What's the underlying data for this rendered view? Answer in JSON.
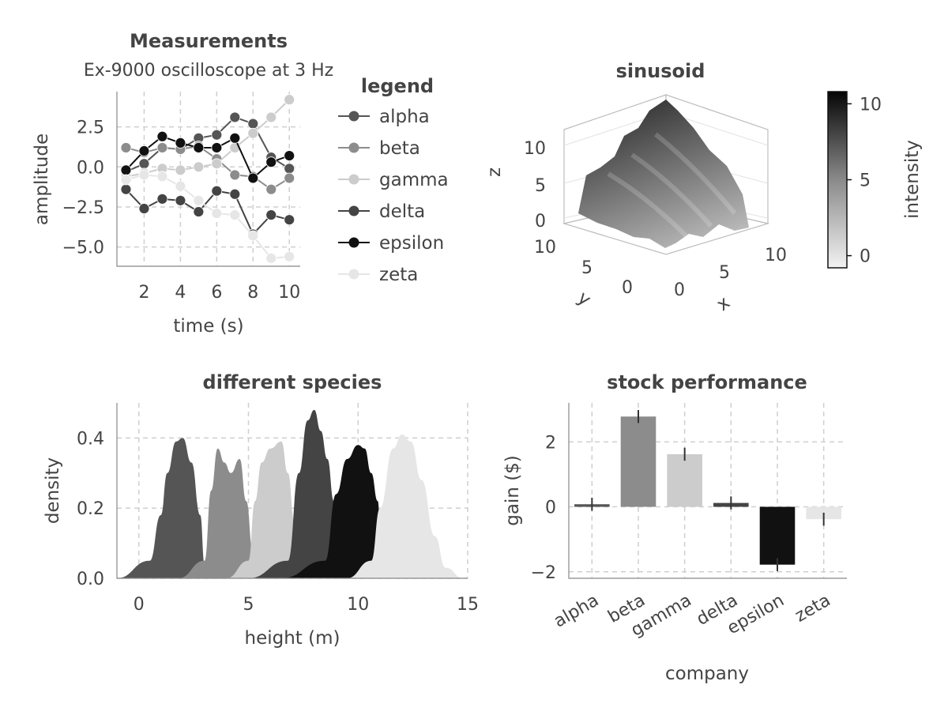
{
  "chart_data": [
    {
      "type": "line",
      "title": "Measurements",
      "subtitle": "Ex-9000 oscilloscope at 3 Hz",
      "xlabel": "time (s)",
      "ylabel": "amplitude",
      "xlim": [
        0.5,
        10.6
      ],
      "ylim": [
        -6.2,
        4.7
      ],
      "xticks": [
        2,
        4,
        6,
        8,
        10
      ],
      "yticks": [
        -5.0,
        -2.5,
        0.0,
        2.5
      ],
      "ytick_labels": [
        "−5.0",
        "−2.5",
        "0.0",
        "2.5"
      ],
      "grid": true,
      "legend": {
        "title": "legend",
        "placement": "outside-right"
      },
      "x": [
        1,
        2,
        3,
        4,
        5,
        6,
        7,
        8,
        9,
        10
      ],
      "series": [
        {
          "name": "alpha",
          "color": "#555555",
          "values": [
            -0.3,
            0.2,
            1.2,
            1.1,
            1.8,
            2.0,
            3.1,
            2.7,
            0.6,
            -0.1
          ]
        },
        {
          "name": "beta",
          "color": "#8c8c8c",
          "values": [
            1.2,
            0.9,
            1.2,
            1.1,
            1.3,
            0.5,
            -0.5,
            -0.6,
            -1.4,
            -0.7
          ]
        },
        {
          "name": "gamma",
          "color": "#cccccc",
          "values": [
            -0.6,
            -0.4,
            -0.1,
            -0.2,
            0.0,
            0.2,
            1.2,
            2.1,
            3.1,
            4.2
          ]
        },
        {
          "name": "delta",
          "color": "#444444",
          "values": [
            -1.4,
            -2.6,
            -2.0,
            -2.1,
            -2.8,
            -1.5,
            -1.7,
            -4.2,
            -3.0,
            -3.3
          ]
        },
        {
          "name": "epsilon",
          "color": "#111111",
          "values": [
            -0.2,
            1.0,
            1.9,
            1.5,
            1.2,
            1.2,
            1.8,
            -0.7,
            0.3,
            0.7
          ]
        },
        {
          "name": "zeta",
          "color": "#e6e6e6",
          "values": [
            -0.8,
            -0.5,
            -0.6,
            -1.2,
            -2.1,
            -2.9,
            -3.0,
            -4.3,
            -5.7,
            -5.6
          ]
        }
      ]
    },
    {
      "type": "surface",
      "title": "sinusoid",
      "xlabel": "x",
      "ylabel": "y",
      "zlabel": "z",
      "xticks": [
        0,
        5,
        10
      ],
      "yticks": [
        0,
        5,
        10
      ],
      "zticks": [
        0,
        5,
        10
      ],
      "colorbar": {
        "label": "intensity",
        "ticks": [
          0,
          5,
          10
        ],
        "range": [
          -0.8,
          10.8
        ]
      }
    },
    {
      "type": "area",
      "title": "different species",
      "xlabel": "height (m)",
      "ylabel": "density",
      "xlim": [
        -1,
        15
      ],
      "ylim": [
        0,
        0.5
      ],
      "xticks": [
        0,
        5,
        10,
        15
      ],
      "yticks": [
        0.0,
        0.2,
        0.4
      ],
      "ytick_labels": [
        "0.0",
        "0.2",
        "0.4"
      ],
      "grid": true,
      "series": [
        {
          "color": "#555555",
          "x": [
            -1.0,
            0.5,
            1.0,
            1.3,
            1.7,
            2.0,
            2.4,
            2.8,
            3.0,
            3.0
          ],
          "values": [
            0.0,
            0.05,
            0.18,
            0.3,
            0.39,
            0.4,
            0.33,
            0.18,
            0.04,
            0.0
          ]
        },
        {
          "color": "#8c8c8c",
          "x": [
            1.8,
            3.0,
            3.3,
            3.6,
            3.9,
            4.2,
            4.6,
            4.9,
            5.2,
            5.3
          ],
          "values": [
            0.0,
            0.05,
            0.25,
            0.37,
            0.33,
            0.3,
            0.34,
            0.22,
            0.08,
            0.0
          ]
        },
        {
          "color": "#cccccc",
          "x": [
            4.0,
            5.0,
            5.3,
            5.6,
            6.0,
            6.5,
            6.8,
            7.1,
            7.5,
            7.6
          ],
          "values": [
            0.0,
            0.05,
            0.22,
            0.33,
            0.37,
            0.39,
            0.3,
            0.16,
            0.05,
            0.0
          ]
        },
        {
          "color": "#444444",
          "x": [
            5.0,
            6.8,
            7.3,
            7.7,
            8.0,
            8.3,
            8.6,
            8.9,
            9.2,
            9.2
          ],
          "values": [
            0.0,
            0.05,
            0.3,
            0.45,
            0.48,
            0.42,
            0.34,
            0.22,
            0.06,
            0.0
          ]
        },
        {
          "color": "#111111",
          "x": [
            6.5,
            8.5,
            9.0,
            9.5,
            10.0,
            10.3,
            10.6,
            10.9,
            11.0,
            11.0
          ],
          "values": [
            0.0,
            0.05,
            0.24,
            0.34,
            0.38,
            0.37,
            0.3,
            0.22,
            0.16,
            0.0
          ]
        },
        {
          "color": "#e6e6e6",
          "x": [
            9.5,
            10.6,
            11.0,
            11.6,
            12.0,
            12.4,
            12.9,
            13.5,
            14.0,
            14.8
          ],
          "values": [
            0.0,
            0.05,
            0.2,
            0.37,
            0.41,
            0.39,
            0.28,
            0.12,
            0.03,
            0.0
          ]
        }
      ]
    },
    {
      "type": "bar",
      "title": "stock performance",
      "xlabel": "company",
      "ylabel": "gain ($)",
      "ylim": [
        -2.2,
        3.2
      ],
      "yticks": [
        -2,
        0,
        2
      ],
      "ytick_labels": [
        "−2",
        "0",
        "2"
      ],
      "grid": true,
      "categories": [
        "alpha",
        "beta",
        "gamma",
        "delta",
        "epsilon",
        "zeta"
      ],
      "values": [
        0.08,
        2.78,
        1.62,
        0.12,
        -1.78,
        -0.38
      ],
      "errors": [
        0.2,
        0.2,
        0.2,
        0.2,
        0.2,
        0.2
      ],
      "colors": [
        "#555555",
        "#8c8c8c",
        "#cccccc",
        "#444444",
        "#111111",
        "#e6e6e6"
      ]
    }
  ]
}
